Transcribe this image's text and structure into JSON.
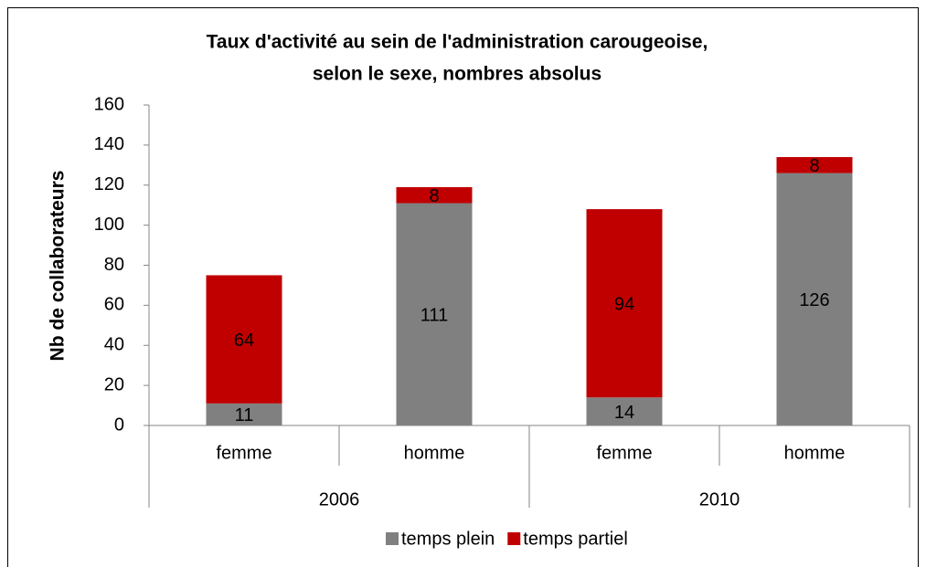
{
  "chart_data": {
    "type": "stacked_bar",
    "title": [
      "Taux d'activité au sein de l'administration carougeoise,",
      "selon le sexe, nombres absolus"
    ],
    "y_label": "Nb de collaborateurs",
    "categories": [
      "femme",
      "homme",
      "femme",
      "homme"
    ],
    "groups": [
      "2006",
      "2010"
    ],
    "series": [
      {
        "name": "temps plein",
        "color": "#808080",
        "values": [
          11,
          111,
          14,
          126
        ]
      },
      {
        "name": "temps partiel",
        "color": "#c00000",
        "values": [
          64,
          8,
          94,
          8
        ]
      }
    ],
    "ylim": [
      0,
      160
    ],
    "yticks": [
      0,
      20,
      40,
      60,
      80,
      100,
      120,
      140,
      160
    ],
    "legend": "bottom"
  }
}
